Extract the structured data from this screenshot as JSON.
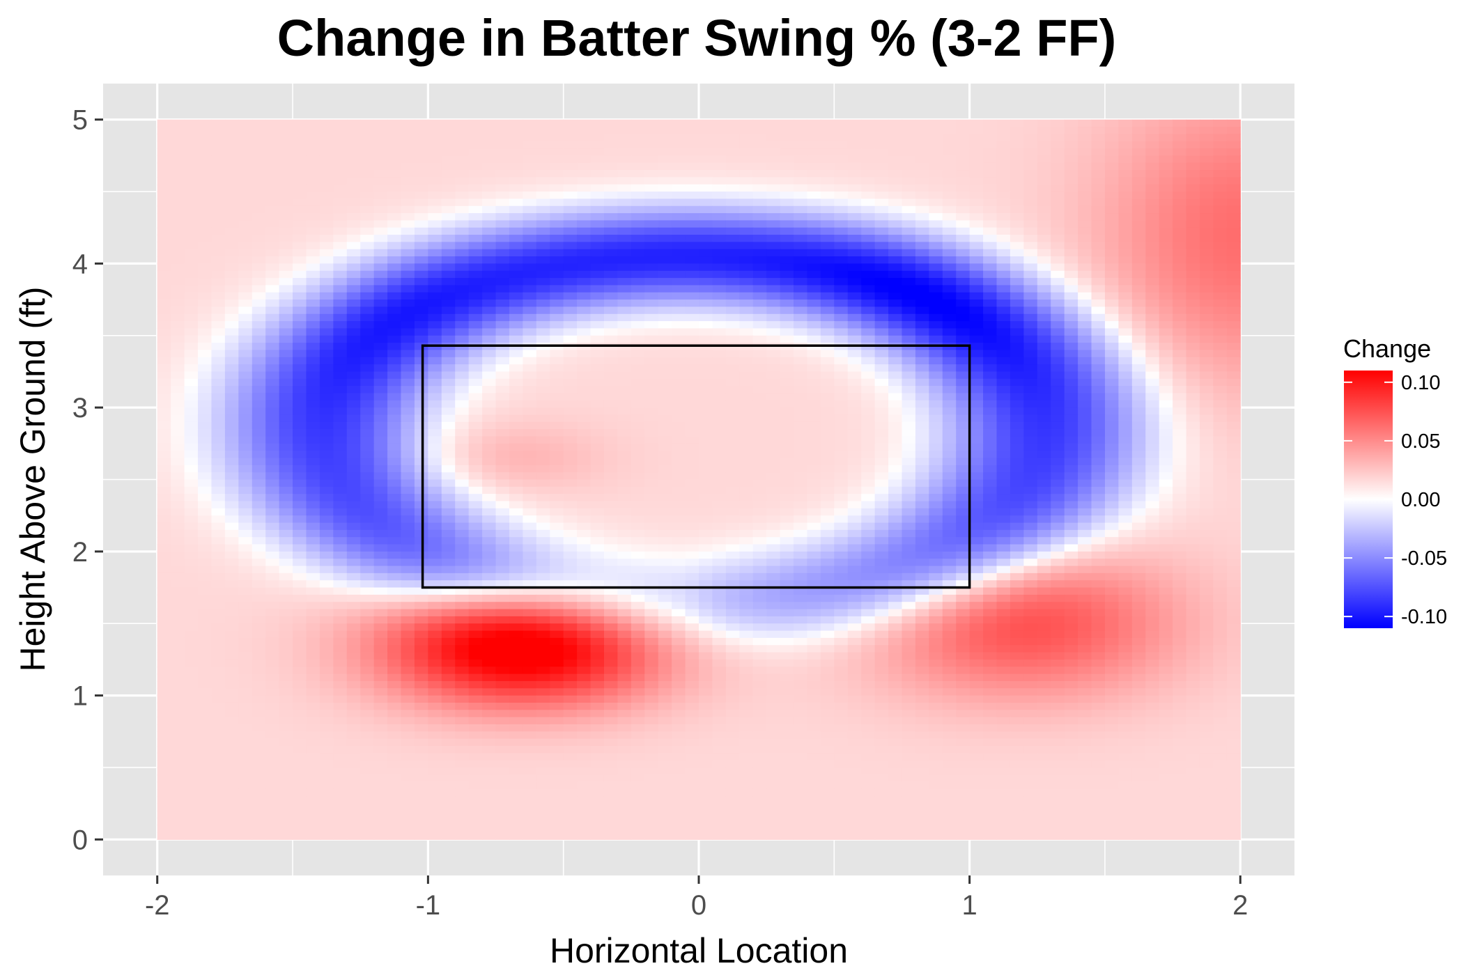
{
  "chart_data": {
    "type": "heatmap",
    "title": "Change in Batter Swing % (3-2 FF)",
    "xlabel": "Horizontal Location",
    "ylabel": "Height Above Ground (ft)",
    "xlim": [
      -2.2,
      2.2
    ],
    "ylim": [
      -0.25,
      5.25
    ],
    "data_extent": {
      "x": [
        -2,
        2
      ],
      "y": [
        0,
        5
      ]
    },
    "x_ticks": [
      -2,
      -1,
      0,
      1,
      2
    ],
    "x_tick_labels": [
      "-2",
      "-1",
      "0",
      "1",
      "2"
    ],
    "y_ticks": [
      0,
      1,
      2,
      3,
      4,
      5
    ],
    "y_tick_labels": [
      "0",
      "1",
      "2",
      "3",
      "4",
      "5"
    ],
    "grid": true,
    "strike_zone": {
      "x": [
        -1.02,
        1.0
      ],
      "y": [
        1.75,
        3.43
      ]
    },
    "value_range": [
      -0.11,
      0.11
    ],
    "features": [
      {
        "shape": "arc",
        "name": "upper-negative-band",
        "cx": -0.05,
        "cy": 2.85,
        "rx": 1.35,
        "ry": 1.2,
        "width": 0.32,
        "amplitude": -0.105
      },
      {
        "shape": "blob",
        "name": "lower-left-positive",
        "x": -0.65,
        "y": 1.35,
        "sx": 0.5,
        "sy": 0.4,
        "amplitude": 0.12
      },
      {
        "shape": "blob",
        "name": "lower-right-positive",
        "x": 1.2,
        "y": 1.5,
        "sx": 0.55,
        "sy": 0.5,
        "amplitude": 0.06
      },
      {
        "shape": "blob",
        "name": "inner-positive",
        "x": -0.7,
        "y": 2.65,
        "sx": 0.35,
        "sy": 0.25,
        "amplitude": 0.015
      },
      {
        "shape": "blob",
        "name": "upper-right-positive",
        "x": 2.0,
        "y": 4.2,
        "sx": 0.5,
        "sy": 1.0,
        "amplitude": 0.045
      }
    ],
    "baseline": 0.012,
    "legend": {
      "title": "Change",
      "placement": "right",
      "breaks": [
        0.1,
        0.05,
        0.0,
        -0.05,
        -0.1
      ],
      "labels": [
        "0.10",
        "0.05",
        "0.00",
        "-0.05",
        "-0.10"
      ],
      "colors": {
        "high": "#ff0000",
        "mid": "#ffffff",
        "low": "#0000ff"
      }
    },
    "panel_background": "#e5e5e5",
    "grid_color": "#ffffff"
  }
}
